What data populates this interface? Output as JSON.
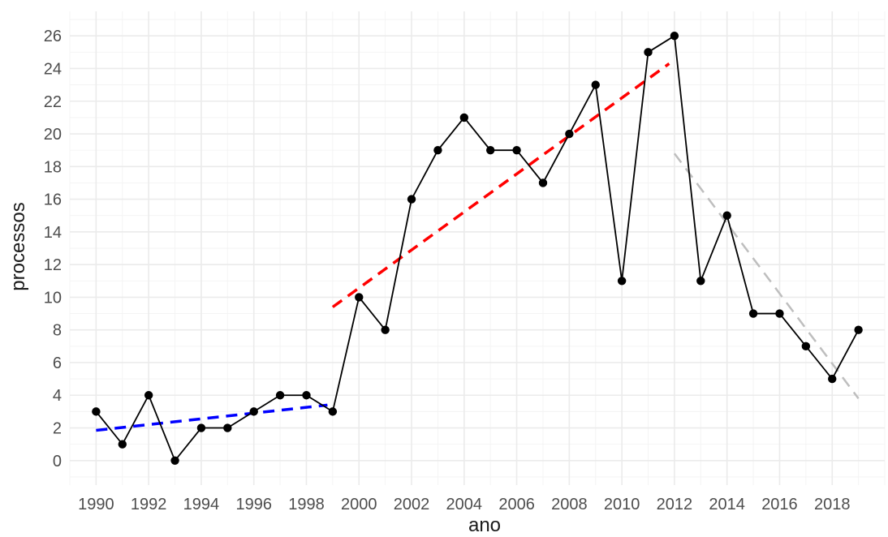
{
  "chart_data": {
    "type": "line",
    "xlabel": "ano",
    "ylabel": "processos",
    "xlim": [
      1989,
      2020
    ],
    "ylim": [
      -1.5,
      27.5
    ],
    "x_ticks": [
      1990,
      1992,
      1994,
      1996,
      1998,
      2000,
      2002,
      2004,
      2006,
      2008,
      2010,
      2012,
      2014,
      2016,
      2018
    ],
    "y_ticks": [
      0,
      2,
      4,
      6,
      8,
      10,
      12,
      14,
      16,
      18,
      20,
      22,
      24,
      26
    ],
    "grid": true,
    "legend": "none",
    "series": [
      {
        "color": "#000000",
        "style": "solid-line-with-points",
        "x": [
          1990,
          1991,
          1992,
          1993,
          1994,
          1995,
          1996,
          1997,
          1998,
          1999,
          2000,
          2001,
          2002,
          2003,
          2004,
          2005,
          2006,
          2007,
          2008,
          2009,
          2010,
          2011,
          2012,
          2013,
          2014,
          2015,
          2016,
          2017,
          2018,
          2019
        ],
        "y": [
          3,
          1,
          4,
          0,
          2,
          2,
          3,
          4,
          4,
          3,
          10,
          8,
          16,
          19,
          21,
          19,
          19,
          17,
          20,
          23,
          11,
          25,
          26,
          11,
          15,
          9,
          9,
          7,
          5,
          8
        ]
      }
    ],
    "trend_lines": [
      {
        "color": "#0000ff",
        "style": "dashed",
        "x": [
          1990,
          1998.8
        ],
        "y": [
          1.85,
          3.4
        ]
      },
      {
        "color": "#ff0000",
        "style": "dashed",
        "x": [
          1999,
          2011.8
        ],
        "y": [
          9.4,
          24.3
        ]
      },
      {
        "color": "#bebebe",
        "style": "dashed",
        "x": [
          2012,
          2019
        ],
        "y": [
          18.8,
          3.8
        ]
      }
    ]
  }
}
